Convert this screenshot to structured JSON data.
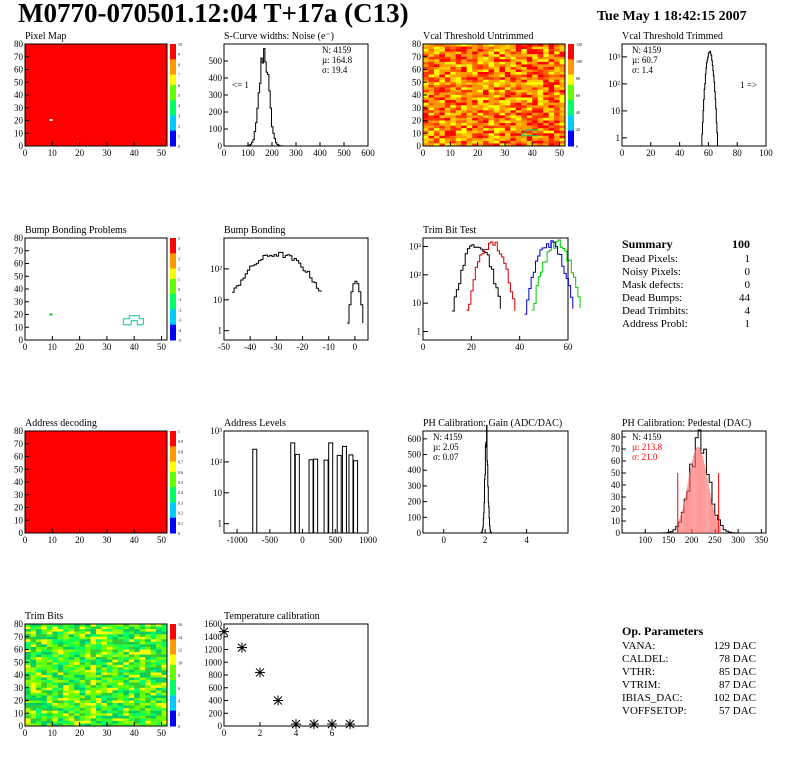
{
  "header": {
    "title": "M0770-070501.12:04 T+17a (C13)",
    "timestamp": "Tue May  1 18:42:15 2007"
  },
  "summary": {
    "title": "Summary",
    "total": "100",
    "rows": [
      {
        "label": "Dead Pixels:",
        "value": "1"
      },
      {
        "label": "Noisy Pixels:",
        "value": "0"
      },
      {
        "label": "Mask defects:",
        "value": "0"
      },
      {
        "label": "Dead Bumps:",
        "value": "44"
      },
      {
        "label": "Dead Trimbits:",
        "value": "4"
      },
      {
        "label": "Address Probl:",
        "value": "1"
      }
    ]
  },
  "op_params": {
    "title": "Op. Parameters",
    "rows": [
      {
        "label": "VANA:",
        "value": "129 DAC"
      },
      {
        "label": "CALDEL:",
        "value": "78 DAC"
      },
      {
        "label": "VTHR:",
        "value": "85 DAC"
      },
      {
        "label": "VTRIM:",
        "value": "87 DAC"
      },
      {
        "label": "IBIAS_DAC:",
        "value": "102 DAC"
      },
      {
        "label": "VOFFSETOP:",
        "value": "57 DAC"
      }
    ]
  },
  "chart_data": [
    {
      "id": "pixel-map",
      "type": "heatmap",
      "title": "Pixel Map",
      "xlim": [
        0,
        52
      ],
      "ylim": [
        0,
        80
      ],
      "xticks": [
        0,
        10,
        20,
        30,
        40,
        50
      ],
      "yticks": [
        0,
        10,
        20,
        30,
        40,
        50,
        60,
        70,
        80
      ],
      "fill": "#ff0000",
      "special_pixels": [
        {
          "x": 9,
          "y": 20,
          "color": "#ffffff"
        }
      ],
      "palette": "rainbow",
      "zmax_ticks": [
        "10",
        "9",
        "8",
        "7",
        "6",
        "5",
        "4",
        "3",
        "2",
        "1",
        "0"
      ]
    },
    {
      "id": "scurve-noise",
      "type": "histogram",
      "title": "S-Curve widths: Noise (e⁻)",
      "xlim": [
        0,
        600
      ],
      "ylim": [
        0,
        600
      ],
      "xticks": [
        0,
        100,
        200,
        300,
        400,
        500,
        600
      ],
      "yticks": [
        0,
        100,
        200,
        300,
        400,
        500
      ],
      "stats": [
        {
          "text": "N: 4159"
        },
        {
          "text": "µ: 164.8"
        },
        {
          "text": "σ: 19.4"
        }
      ],
      "annotation": "<= 1",
      "peaks": [
        {
          "mean": 164.8,
          "sigma": 19.4,
          "height": 560
        }
      ]
    },
    {
      "id": "vcal-untrimmed",
      "type": "heatmap",
      "title": "Vcal Threshold Untrimmed",
      "xlim": [
        0,
        52
      ],
      "ylim": [
        0,
        80
      ],
      "xticks": [
        0,
        10,
        20,
        30,
        40,
        50
      ],
      "yticks": [
        0,
        10,
        20,
        30,
        40,
        50,
        60,
        70,
        80
      ],
      "palette": "noisy-orange",
      "zmax_ticks": [
        "120",
        "100",
        "80",
        "60",
        "40",
        "20",
        "0"
      ]
    },
    {
      "id": "vcal-trimmed",
      "type": "histogram",
      "title": "Vcal Threshold Trimmed",
      "xlim": [
        0,
        100
      ],
      "log": true,
      "ylim": [
        0.5,
        3000
      ],
      "xticks": [
        0,
        20,
        40,
        60,
        80,
        100
      ],
      "yticks_log": [
        "1",
        "10",
        "10²",
        "10³"
      ],
      "stats": [
        {
          "text": "N: 4159"
        },
        {
          "text": "µ: 60.7"
        },
        {
          "text": "σ: 1.4"
        }
      ],
      "annotation": "1 =>",
      "peaks": [
        {
          "mean": 60.7,
          "sigma": 1.4,
          "height": 1500
        }
      ]
    },
    {
      "id": "bump-bonding-problems",
      "type": "heatmap",
      "title": "Bump Bonding Problems",
      "xlim": [
        0,
        52
      ],
      "ylim": [
        0,
        80
      ],
      "xticks": [
        0,
        10,
        20,
        30,
        40,
        50
      ],
      "yticks": [
        0,
        10,
        20,
        30,
        40,
        50,
        60,
        70,
        80
      ],
      "fill": "#ffffff",
      "zmax_ticks": [
        "5",
        "4",
        "3",
        "2",
        "1",
        "0",
        "-1",
        "-2",
        "-3",
        "-4",
        "-5"
      ]
    },
    {
      "id": "bump-bonding",
      "type": "histogram",
      "title": "Bump Bonding",
      "xlim": [
        -50,
        5
      ],
      "log": true,
      "ylim": [
        0.5,
        1000
      ],
      "xticks": [
        -50,
        -40,
        -30,
        -20,
        -10,
        0
      ],
      "yticks_log": [
        "1",
        "10",
        "10²"
      ]
    },
    {
      "id": "trim-bit-test",
      "type": "histogram",
      "title": "Trim Bit Test",
      "xlim": [
        0,
        60
      ],
      "log": true,
      "ylim": [
        0.5,
        2000
      ],
      "xticks": [
        0,
        20,
        40,
        60
      ],
      "yticks_log": [
        "1",
        "10",
        "10²",
        "10³"
      ],
      "series": [
        {
          "color": "#000000",
          "mean": 22
        },
        {
          "color": "#cc0000",
          "mean": 28
        },
        {
          "color": "#00cc00",
          "mean": 55
        },
        {
          "color": "#0000cc",
          "mean": 52
        }
      ]
    },
    {
      "id": "address-decoding",
      "type": "heatmap",
      "title": "Address decoding",
      "xlim": [
        0,
        52
      ],
      "ylim": [
        0,
        80
      ],
      "xticks": [
        0,
        10,
        20,
        30,
        40,
        50
      ],
      "yticks": [
        0,
        10,
        20,
        30,
        40,
        50,
        60,
        70,
        80
      ],
      "fill": "#ff0000",
      "zmax_ticks": [
        "1",
        "0.9",
        "0.8",
        "0.7",
        "0.6",
        "0.5",
        "0.4",
        "0.3",
        "0.2",
        "0.1",
        "0"
      ]
    },
    {
      "id": "address-levels",
      "type": "histogram",
      "title": "Address Levels",
      "xlim": [
        -1200,
        1000
      ],
      "log": true,
      "ylim": [
        0.5,
        1000
      ],
      "xticks": [
        -1000,
        -500,
        0,
        500,
        1000
      ],
      "yticks_log": [
        "1",
        "10",
        "10²",
        "10³"
      ],
      "spikes": [
        -730,
        -150,
        -80,
        130,
        200,
        360,
        430,
        560,
        640,
        740,
        810
      ]
    },
    {
      "id": "ph-gain",
      "type": "histogram",
      "title": "PH Calibration: Gain (ADC/DAC)",
      "xlim": [
        -1,
        6
      ],
      "ylim": [
        0,
        650
      ],
      "xticks": [
        0,
        2,
        4
      ],
      "yticks": [
        0,
        100,
        200,
        300,
        400,
        500,
        600
      ],
      "stats": [
        {
          "text": "N: 4159"
        },
        {
          "text": "µ: 2.05"
        },
        {
          "text": "σ: 0.07"
        }
      ],
      "peaks": [
        {
          "mean": 2.05,
          "sigma": 0.07,
          "height": 630
        }
      ]
    },
    {
      "id": "ph-pedestal",
      "type": "histogram",
      "title": "PH Calibration: Pedestal (DAC)",
      "xlim": [
        50,
        360
      ],
      "ylim": [
        0,
        85
      ],
      "xticks": [
        100,
        150,
        200,
        250,
        300,
        350
      ],
      "yticks": [
        0,
        10,
        20,
        30,
        40,
        50,
        60,
        70,
        80
      ],
      "stats": [
        {
          "text": "N: 4159"
        },
        {
          "text": "µ: 213.8",
          "color": "#ff0000"
        },
        {
          "text": "σ: 21.0",
          "color": "#ff0000"
        }
      ],
      "peaks": [
        {
          "mean": 213.8,
          "sigma": 21.0,
          "height": 75
        }
      ],
      "cutlines": [
        170,
        258
      ]
    },
    {
      "id": "trim-bits",
      "type": "heatmap",
      "title": "Trim Bits",
      "xlim": [
        0,
        52
      ],
      "ylim": [
        0,
        80
      ],
      "xticks": [
        0,
        10,
        20,
        30,
        40,
        50
      ],
      "yticks": [
        0,
        10,
        20,
        30,
        40,
        50,
        60,
        70,
        80
      ],
      "palette": "noisy-green",
      "zmax_ticks": [
        "16",
        "14",
        "12",
        "10",
        "8",
        "6",
        "4",
        "2",
        "0"
      ]
    },
    {
      "id": "temperature",
      "type": "scatter",
      "title": "Temperature calibration",
      "xlim": [
        0,
        8
      ],
      "ylim": [
        0,
        1600
      ],
      "xticks": [
        0,
        2,
        4,
        6
      ],
      "yticks": [
        0,
        200,
        400,
        600,
        800,
        1000,
        1200,
        1400,
        1600
      ],
      "x": [
        0,
        1,
        2,
        3,
        4,
        5,
        6,
        7
      ],
      "y": [
        1480,
        1230,
        840,
        400,
        30,
        30,
        30,
        30
      ]
    }
  ]
}
